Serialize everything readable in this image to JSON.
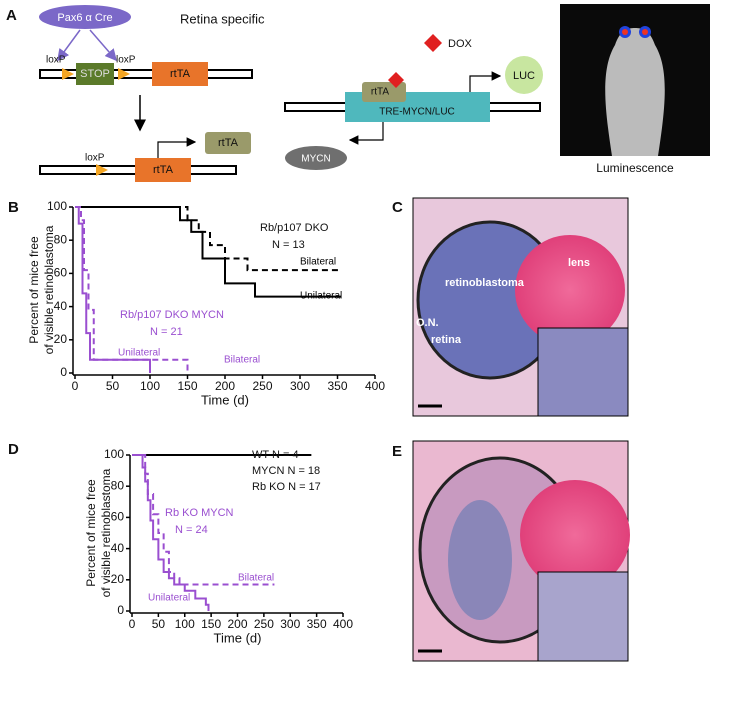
{
  "panel_a": {
    "panel": "A",
    "cre": "Pax6 α Cre",
    "retina_specific": "Retina specific",
    "loxp_1": "loxP",
    "stop": "STOP",
    "loxp_2": "loxP",
    "rtta_1": "rtTA",
    "loxp_3": "loxP",
    "rtta_2": "rtTA",
    "rtta_3": "rtTA",
    "dox": "DOX",
    "luc": "LUC",
    "rtta_4": "rtTA",
    "construct": "TRE-MYCN/LUC",
    "mycn": "MYCN",
    "luminescence": "Luminescence"
  },
  "panel_c": {
    "panel": "C",
    "retinoblastoma": "retinoblastoma",
    "lens": "lens",
    "on": "O.N.",
    "retina": "retina"
  },
  "panel_e": {
    "panel": "E"
  },
  "chart_data": [
    {
      "type": "line",
      "panel": "B",
      "ylabel": [
        "Percent of mice free",
        "of visible retinoblastoma"
      ],
      "xlabel": "Time (d)",
      "xlim": [
        0,
        400
      ],
      "xticks": [
        0,
        50,
        100,
        150,
        200,
        250,
        300,
        350,
        400
      ],
      "ylim": [
        0,
        100
      ],
      "yticks": [
        0,
        20,
        40,
        60,
        80,
        100
      ],
      "annotations": [
        "Rb/p107 DKO",
        "N = 13",
        "Rb/p107 DKO MYCN",
        "N = 21"
      ],
      "series": [
        {
          "name": "Unilateral",
          "color": "#000000",
          "dashed": false,
          "x": [
            0,
            140,
            140,
            155,
            155,
            170,
            170,
            200,
            200,
            240,
            240,
            355
          ],
          "values": [
            100,
            100,
            92,
            92,
            85,
            85,
            69,
            69,
            54,
            54,
            46,
            46
          ]
        },
        {
          "name": "Bilateral",
          "color": "#000000",
          "dashed": true,
          "x": [
            0,
            150,
            150,
            165,
            165,
            180,
            180,
            200,
            200,
            230,
            230,
            355
          ],
          "values": [
            100,
            100,
            92,
            92,
            85,
            85,
            77,
            77,
            69,
            69,
            62,
            62
          ]
        },
        {
          "name": "Unilateral",
          "color": "#9a4fd0",
          "dashed": false,
          "x": [
            0,
            5,
            5,
            10,
            10,
            15,
            15,
            20,
            20,
            100,
            100
          ],
          "values": [
            100,
            100,
            90,
            90,
            48,
            48,
            24,
            24,
            8,
            8,
            0
          ]
        },
        {
          "name": "Bilateral",
          "color": "#9a4fd0",
          "dashed": true,
          "x": [
            0,
            8,
            8,
            12,
            12,
            18,
            18,
            25,
            25,
            150,
            150
          ],
          "values": [
            100,
            100,
            92,
            92,
            62,
            62,
            38,
            38,
            8,
            8,
            0
          ]
        }
      ]
    },
    {
      "type": "line",
      "panel": "D",
      "ylabel": [
        "Percent of mice free",
        "of visible retinoblastoma"
      ],
      "xlabel": "Time (d)",
      "xlim": [
        0,
        400
      ],
      "xticks": [
        0,
        50,
        100,
        150,
        200,
        250,
        300,
        350,
        400
      ],
      "ylim": [
        0,
        100
      ],
      "yticks": [
        0,
        20,
        40,
        60,
        80,
        100
      ],
      "annotations": [
        "WT N = 4",
        "MYCN N = 18",
        "Rb KO N = 17",
        "Rb KO MYCN",
        "N = 24"
      ],
      "series": [
        {
          "name": null,
          "color": "#000000",
          "dashed": false,
          "x": [
            0,
            340
          ],
          "values": [
            100,
            100
          ]
        },
        {
          "name": "Unilateral",
          "color": "#9a4fd0",
          "dashed": false,
          "x": [
            0,
            20,
            20,
            25,
            25,
            30,
            30,
            35,
            35,
            40,
            40,
            50,
            50,
            60,
            60,
            70,
            70,
            80,
            80,
            100,
            100,
            120,
            120,
            140,
            140,
            145,
            145
          ],
          "values": [
            100,
            100,
            92,
            92,
            83,
            83,
            71,
            71,
            58,
            58,
            46,
            46,
            33,
            33,
            25,
            25,
            21,
            21,
            17,
            17,
            13,
            13,
            8,
            8,
            4,
            4,
            0
          ]
        },
        {
          "name": "Bilateral",
          "color": "#9a4fd0",
          "dashed": true,
          "x": [
            0,
            25,
            25,
            30,
            30,
            40,
            40,
            50,
            50,
            60,
            60,
            70,
            70,
            80,
            80,
            90,
            90,
            270
          ],
          "values": [
            100,
            100,
            88,
            88,
            75,
            75,
            62,
            62,
            50,
            50,
            38,
            38,
            25,
            25,
            21,
            21,
            17,
            17
          ]
        }
      ]
    }
  ]
}
